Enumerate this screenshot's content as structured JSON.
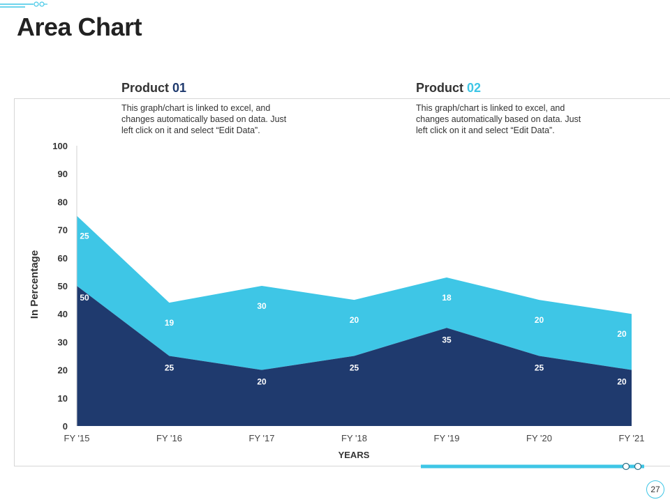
{
  "slide": {
    "title": "Area Chart",
    "page_number": "27"
  },
  "legend": [
    {
      "label": "Product",
      "number": "01",
      "number_color": "#1f3a6e",
      "description": [
        "This graph/chart is linked to excel, and",
        "changes automatically based on data. Just",
        "left click on it and select “Edit Data”."
      ]
    },
    {
      "label": "Product",
      "number": "02",
      "number_color": "#3ec6e6",
      "description": [
        "This graph/chart is linked to excel, and",
        "changes automatically based on data. Just",
        "left click on it and select “Edit Data”."
      ]
    }
  ],
  "colors": {
    "product01": "#1f3a6e",
    "product02": "#3ec6e6",
    "accent": "#3ec6e6"
  },
  "chart_data": {
    "type": "area",
    "stacked": true,
    "categories": [
      "FY '15",
      "FY '16",
      "FY '17",
      "FY '18",
      "FY '19",
      "FY '20",
      "FY '21"
    ],
    "series": [
      {
        "name": "Product 01",
        "values": [
          50,
          25,
          20,
          25,
          35,
          25,
          20
        ],
        "color": "#1f3a6e"
      },
      {
        "name": "Product 02",
        "values": [
          25,
          19,
          30,
          20,
          18,
          20,
          20
        ],
        "color": "#3ec6e6"
      }
    ],
    "xlabel": "YEARS",
    "ylabel": "In Percentage",
    "ylim": [
      0,
      100
    ],
    "yticks": [
      0,
      10,
      20,
      30,
      40,
      50,
      60,
      70,
      80,
      90,
      100
    ],
    "grid": false,
    "data_labels": true
  }
}
